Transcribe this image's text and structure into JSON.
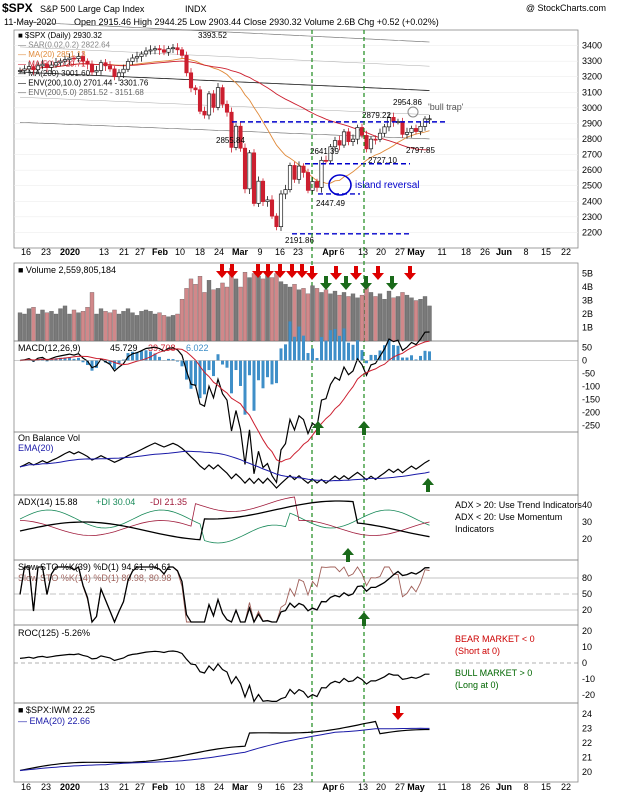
{
  "header": {
    "symbol": "$SPX",
    "name": "S&P 500 Large Cap Index",
    "exchange": "INDX",
    "credit": "@ StockCharts.com",
    "date": "11-May-2020",
    "quote": "Open 2915.46  High 2944.25  Low 2903.44  Close 2930.32  Volume 2.6B  Chg +0.52 (+0.02%)"
  },
  "colors": {
    "up": "#1a1a1a",
    "down": "#cc1f2f",
    "ma20": "#e08a3a",
    "ma50": "#cc1f2f",
    "ma200": "#111111",
    "env": "#666666",
    "level": "#0000cc",
    "vline": "#1a8a1a",
    "macd_hist": "#3f8fc8",
    "vol_up": "#7a7a7a",
    "vol_down": "#d1888a",
    "ema": "#1a1aa8",
    "adx_plus": "#1a8a5a",
    "adx_minus": "#a01c3c",
    "sto_k": "#a0605a",
    "ann_red": "#cc0000",
    "ann_green": "#006600",
    "arrow_red": "#dd0000",
    "arrow_green": "#1a6a1a"
  },
  "chart_data": {
    "type": "stock-panels",
    "period": "Daily",
    "x_axis_labels": [
      "16",
      "23",
      "2020",
      "13",
      "21",
      "27",
      "Feb",
      "10",
      "18",
      "24",
      "Mar",
      "9",
      "16",
      "23",
      "Apr",
      "6",
      "13",
      "20",
      "27",
      "May",
      "11",
      "18",
      "26",
      "Jun",
      "8",
      "15",
      "22"
    ],
    "price_panel": {
      "legend": [
        "■ $SPX (Daily) 2930.32",
        "— SAR(0.02,0.2) 2822.64",
        "— MA(20) 2851.13",
        "— MA(50) 2729.71",
        "— MA(200) 3001.60",
        "— ENV(200,10.0) 2701.44 - 3301.76",
        "— ENV(200,5.0) 2851.52 - 3151.68"
      ],
      "ylim": [
        2100,
        3500
      ],
      "y_ticks": [
        2200,
        2300,
        2400,
        2500,
        2600,
        2700,
        2800,
        2900,
        3000,
        3100,
        3200,
        3300,
        3400
      ],
      "annotations": [
        "3393.52",
        "2855.84",
        "2641.39",
        "2727.10",
        "2447.49",
        "2191.86",
        "2879.22",
        "2954.86",
        "2797.85",
        "'bull trap'",
        "island reversal"
      ],
      "support_resistance_levels": [
        2910,
        2641,
        2447,
        2191
      ],
      "closes": [
        3240,
        3250,
        3265,
        3245,
        3270,
        3280,
        3260,
        3275,
        3290,
        3300,
        3310,
        3320,
        3316,
        3330,
        3300,
        3280,
        3230,
        3240,
        3290,
        3270,
        3250,
        3200,
        3225,
        3248,
        3298,
        3320,
        3330,
        3346,
        3365,
        3372,
        3380,
        3373,
        3357,
        3380,
        3386,
        3373,
        3337,
        3225,
        3128,
        3116,
        2978,
        2954,
        3090,
        3003,
        3130,
        3023,
        2972,
        2746,
        2882,
        2741,
        2480,
        2711,
        2386,
        2529,
        2398,
        2409,
        2305,
        2237,
        2447,
        2475,
        2630,
        2541,
        2626,
        2585,
        2470,
        2527,
        2489,
        2663,
        2660,
        2750,
        2790,
        2761,
        2846,
        2783,
        2799,
        2874,
        2823,
        2737,
        2799,
        2798,
        2837,
        2878,
        2939,
        2912,
        2912,
        2830,
        2842,
        2868,
        2848,
        2881,
        2929,
        2930
      ]
    },
    "volume_panel": {
      "legend": "■ Volume 2,559,805,184",
      "y_ticks": [
        "5B",
        "4B",
        "3B",
        "2B",
        "1B"
      ],
      "values_b": [
        2.1,
        2.0,
        2.4,
        2.5,
        2.0,
        2.3,
        2.1,
        2.2,
        2.0,
        2.4,
        2.6,
        2.0,
        2.3,
        2.1,
        2.2,
        2.5,
        3.6,
        2.0,
        2.4,
        2.2,
        2.1,
        2.3,
        2.0,
        2.2,
        2.4,
        2.1,
        1.9,
        2.2,
        2.3,
        2.2,
        2.0,
        2.1,
        1.9,
        1.8,
        1.9,
        2.0,
        3.1,
        3.9,
        4.6,
        4.2,
        4.8,
        3.6,
        4.5,
        3.8,
        3.9,
        4.3,
        4.0,
        5.4,
        4.6,
        4.0,
        5.1,
        4.7,
        5.0,
        4.8,
        4.6,
        4.9,
        4.7,
        5.0,
        4.4,
        4.2,
        4.0,
        4.2,
        3.8,
        3.9,
        3.5,
        4.1,
        3.9,
        3.6,
        3.8,
        3.5,
        3.7,
        3.4,
        3.6,
        3.3,
        3.5,
        3.2,
        3.4,
        4.0,
        3.6,
        3.3,
        3.5,
        3.1,
        3.7,
        3.2,
        3.3,
        3.6,
        3.4,
        3.2,
        3.0,
        3.1,
        3.3,
        2.6
      ]
    },
    "macd_panel": {
      "legend_name": "MACD(12,26,9)",
      "legend_values": [
        "45.729",
        "39.708",
        "6.022"
      ],
      "y_ticks": [
        50,
        0,
        -50,
        -100,
        -150,
        -200,
        -250
      ],
      "ylim": [
        -275,
        75
      ]
    },
    "obv_panel": {
      "legend": [
        "On Balance Vol",
        "EMA(20)"
      ]
    },
    "adx_panel": {
      "legend_name": "ADX(14) 15.88",
      "plus_di": "+DI 30.04",
      "minus_di": "-DI 21.35",
      "y_ticks": [
        40,
        30,
        20
      ],
      "notes": [
        "ADX > 20: Use Trend Indicators",
        "ADX < 20: Use Momentum",
        "Indicators"
      ]
    },
    "sto_panel": {
      "legend_1": "Slow STO %K(39) %D(1) 94.61, 94.61",
      "legend_2": "Slow STO %K(14) %D(1) 80.98, 80.98",
      "y_ticks": [
        80,
        50,
        20
      ]
    },
    "roc_panel": {
      "legend": "ROC(125) -5.26%",
      "y_ticks": [
        20,
        10,
        0,
        -10,
        -20
      ],
      "notes_bear": [
        "BEAR MARKET < 0",
        "(Short at 0)"
      ],
      "notes_bull": [
        "BULL MARKET > 0",
        "(Long at 0)"
      ]
    },
    "ratio_panel": {
      "legend": [
        "■ $SPX:IWM 22.25",
        "— EMA(20) 22.66"
      ],
      "y_ticks": [
        24,
        23,
        22,
        21,
        20
      ]
    }
  }
}
